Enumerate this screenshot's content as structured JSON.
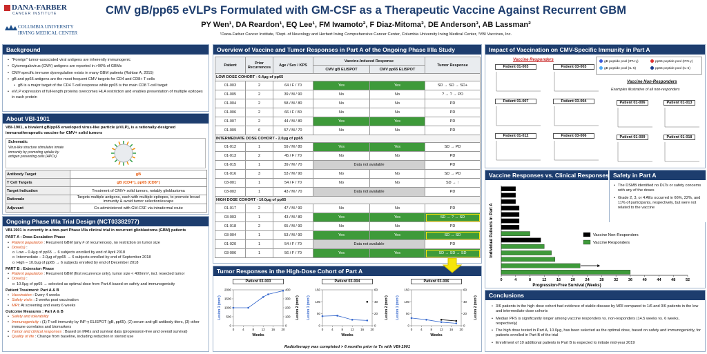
{
  "header": {
    "logo_1": "DANA-FARBER",
    "logo_1_sub": "CANCER INSTITUTE",
    "logo_2": "COLUMBIA UNIVERSITY",
    "logo_2_sub": "IRVING MEDICAL CENTER",
    "title": "CMV gB/pp65 eVLPs Formulated with GM-CSF as a Therapeutic Vaccine Against Recurrent GBM",
    "authors": "PY Wen¹, DA Reardon¹, EQ Lee¹, FM Iwamoto², F Diaz-Mitoma³, DE Anderson³, AB Lassman²",
    "affiliations": "¹Dana-Farber Cancer Institute, ²Dept. of Neurology and Herbert Irving Comprehensive Cancer Center, Columbia University Irving Medical Center, ³VBI Vaccines, Inc."
  },
  "background": {
    "heading": "Background",
    "bullets": [
      {
        "text": "\"Foreign\" tumor-associated viral antigens are inherently immunogenic",
        "level": 1
      },
      {
        "text": "Cytomegalovirus (CMV) antigens are reported in >90% of GBMs",
        "level": 1
      },
      {
        "text": "CMV-specific immune dysregulation exists in many GBM patients (Rahbar A, 2015)",
        "level": 1
      },
      {
        "text": "gB and pp65 antigens are the most frequent CMV targets for CD4 and CD8+ T-cells",
        "level": 1
      },
      {
        "text": "gB is a major target of the CD4 T-cell response while pp65 is the main CD8 T-cell target",
        "level": 2
      },
      {
        "text": "eVLP expression of full-length proteins overcomes HLA restriction and enables presentation of multiple epitopes in each protein",
        "level": 1
      }
    ]
  },
  "about": {
    "heading": "About VBI-1901",
    "intro": "VBI-1901, a bivalent gB/pp65 enveloped virus-like particle (eVLP), is a rationally-designed immunotherapeutic vaccine for CMV+ solid tumors",
    "schematic_label": "Schematic",
    "schematic_text": "Virus-like structure stimulates innate immunity by promoting uptake by antigen presenting cells (APCs)",
    "rows": [
      [
        "Antibody Target",
        "gB"
      ],
      [
        "T Cell Targets",
        "gB (CD4⁺), pp65 (CD8⁺)"
      ],
      [
        "Target Indication",
        "Treatment of CMV+ solid tumors, notably glioblastoma"
      ],
      [
        "Rationale",
        "Targets multiple antigens, each with multiple epitopes, to promote broad immunity & avoid tumor selection/escape"
      ],
      [
        "Adjuvant",
        "Co-administered with GM-CSF via intradermal route"
      ]
    ]
  },
  "trial": {
    "heading": "Ongoing Phase I/IIa Trial Design (NCT03382977)",
    "intro": "VBI-1901 is currently in a two-part Phase I/IIa clinical trial in recurrent glioblastoma (GBM) patients",
    "items": [
      {
        "kind": "head",
        "text": "PART A : Dose-Escalation Phase"
      },
      {
        "kind": "bullet",
        "label": "Patient population",
        "text": " : Recurrent GBM (any # of recurrences), no restriction on tumor size"
      },
      {
        "kind": "bullet",
        "label": "Dose(s)",
        "text": " :"
      },
      {
        "kind": "sub",
        "text": "Low – 0.4μg of pp65 → 6 subjects enrolled by end of April 2018"
      },
      {
        "kind": "sub",
        "text": "Intermediate – 2.0μg of pp65 → 6 subjects enrolled by end of September 2018"
      },
      {
        "kind": "sub",
        "text": "High – 10.0μg of pp65 → 6 subjects enrolled by end of December 2018"
      },
      {
        "kind": "head",
        "text": "PART B : Extension Phase"
      },
      {
        "kind": "bullet",
        "label": "Patient population",
        "text": " : Recurrent GBM (first recurrence only), tumor size < 400mm², incl. resected tumor"
      },
      {
        "kind": "bullet",
        "label": "Dose(s)",
        "text": " :"
      },
      {
        "kind": "sub",
        "text": "10.0μg of pp65 → selected as optimal dose from Part A based on safety and immunogenicity"
      },
      {
        "kind": "head",
        "text": "Patient Treatment: Part A & B"
      },
      {
        "kind": "bullet",
        "label": "Vaccination",
        "text": " : Every 4 weeks"
      },
      {
        "kind": "bullet",
        "label": "Safety visits",
        "text": " : 2 weeks post vaccination"
      },
      {
        "kind": "bullet",
        "label": "MRI",
        "text": ": At screening and every 6 weeks"
      },
      {
        "kind": "head",
        "text": "Outcome Measures : Part A & B"
      },
      {
        "kind": "bullet",
        "label": "Safety and tolerability",
        "text": ""
      },
      {
        "kind": "bullet",
        "label": "Immunogenicity",
        "text": " : (1) T-cell immunity by INF-γ ELISPOT (gB, pp65), (2) serum anti-gB antibody titers, (3) other immune correlates and biomarkers"
      },
      {
        "kind": "bullet",
        "label": "Tumor and clinical responses",
        "text": " : Based on MRIs and survival data (progression-free and overall survival)"
      },
      {
        "kind": "bullet",
        "label": "Quality of life",
        "text": " : Change from baseline, including reduction in steroid use"
      }
    ]
  },
  "table": {
    "heading": "Overview of Vaccine and Tumor Responses in Part A of the Ongoing Phase I/IIa Study",
    "columns": [
      "Patient",
      "Prior Recurrences",
      "Age / Sex / KPS",
      "Vaccine-Induced Response",
      "Tumor Response"
    ],
    "subcolumns": [
      "CMV gB ELISPOT",
      "CMV pp65 ELISPOT"
    ],
    "cohorts": [
      {
        "title": "LOW DOSE COHORT - 0.4μg of pp65",
        "highlight_rows": [],
        "rows": [
          [
            "01-003",
            "2",
            "64 / F / 70",
            "Yes",
            "Yes",
            "SD → SD → SD+"
          ],
          [
            "01-005",
            "2",
            "39 / M / 90",
            "No",
            "No",
            "? → ? → PD"
          ],
          [
            "01-004",
            "2",
            "58 / M / 80",
            "No",
            "No",
            "PD"
          ],
          [
            "01-006",
            "2",
            "66 / F / 80",
            "No",
            "No",
            "PD"
          ],
          [
            "01-007",
            "2",
            "44 / M / 80",
            "Yes",
            "Yes",
            "PD"
          ],
          [
            "01-009",
            "6",
            "57 / M / 70",
            "No",
            "No",
            "PD"
          ]
        ]
      },
      {
        "title": "INTERMEDIATE DOSE COHORT - 2.0μg of pp65",
        "highlight_rows": [],
        "rows": [
          [
            "01-012",
            "1",
            "59 / M / 80",
            "Yes",
            "Yes",
            "SD → PD"
          ],
          [
            "01-013",
            "2",
            "45 / F / 70",
            "No",
            "No",
            "PD"
          ],
          [
            "01-015",
            "1",
            "39 / M / 70",
            "Data not available",
            "PD"
          ],
          [
            "01-016",
            "3",
            "53 / M / 90",
            "No",
            "No",
            "SD → PD"
          ],
          [
            "03-001",
            "1",
            "54 / F / 70",
            "No",
            "No",
            "SD → ↑"
          ],
          [
            "03-002",
            "1",
            "43 / M / 70",
            "Data not available",
            "PD"
          ]
        ]
      },
      {
        "title": "HIGH DOSE COHORT - 10.0μg of pp65",
        "highlight_rows": [
          1,
          3,
          5
        ],
        "rows": [
          [
            "01-017",
            "2",
            "47 / M / 90",
            "No",
            "No",
            "PD"
          ],
          [
            "03-003",
            "1",
            "43 / M / 80",
            "Yes",
            "Yes",
            "SD → ? → SD"
          ],
          [
            "01-018",
            "2",
            "65 / M / 90",
            "No",
            "No",
            "PD"
          ],
          [
            "03-004",
            "1",
            "53 / M / 90",
            "Yes",
            "Yes",
            "SD → SD"
          ],
          [
            "01-020",
            "1",
            "54 / F / 70",
            "Data not available",
            "PD"
          ],
          [
            "03-006",
            "1",
            "56 / F / 70",
            "Yes",
            "Yes",
            "SD → SD → SD"
          ]
        ]
      }
    ]
  },
  "tumor": {
    "heading": "Tumor Responses in the High-Dose Cohort of Part A",
    "footnote": "Radiotherapy was completed > 6 months prior to Tx with VBI-1901",
    "charts": [
      {
        "type": "line",
        "title": "Patient 03-003",
        "xlabel": "Weeks",
        "ylabel": "Lesion 1 (mm²)",
        "y2label": "Lesion 2 (mm²)",
        "xlim": [
          0,
          20
        ],
        "xticks": [
          0,
          4,
          8,
          12,
          16,
          20
        ],
        "ylim": [
          0,
          2000
        ],
        "yticks": [
          0,
          500,
          1000,
          1500,
          2000
        ],
        "y2lim": [
          0,
          400
        ],
        "y2ticks": [
          0,
          100,
          200,
          300,
          400
        ],
        "series": [
          {
            "color": "#3366cc",
            "x": [
              0,
              6,
              12,
              14,
              20
            ],
            "values": [
              1000,
              1000,
              1600,
              1750,
              1950
            ]
          }
        ]
      },
      {
        "type": "line",
        "title": "Patient 03-004",
        "xlabel": "Weeks",
        "ylabel": "Lesion 1 (mm²)",
        "y2label": "Lesion 2 (mm²)",
        "xlim": [
          0,
          20
        ],
        "xticks": [
          0,
          4,
          8,
          12,
          16,
          20
        ],
        "ylim": [
          0,
          150
        ],
        "yticks": [
          0,
          50,
          100,
          150
        ],
        "y2lim": [
          0,
          60
        ],
        "y2ticks": [
          0,
          20,
          40,
          60
        ],
        "series": [
          {
            "color": "#3366cc",
            "x": [
              0,
              6,
              12,
              18
            ],
            "values": [
              40,
              42,
              25,
              22
            ]
          },
          {
            "color": "#111111",
            "axis": "y2",
            "x": [
              18
            ],
            "values": [
              40
            ]
          }
        ]
      },
      {
        "type": "line",
        "title": "Patient 03-006",
        "xlabel": "Weeks",
        "ylabel": "Lesion 1 (mm²)",
        "y2label": "Lesion 2 (mm²)",
        "xlim": [
          0,
          20
        ],
        "xticks": [
          0,
          4,
          8,
          12,
          16,
          20
        ],
        "ylim": [
          0,
          150
        ],
        "yticks": [
          0,
          50,
          100,
          150
        ],
        "y2lim": [
          0,
          60
        ],
        "y2ticks": [
          0,
          20,
          40,
          60
        ],
        "series": [
          {
            "color": "#3366cc",
            "x": [
              0,
              6,
              12,
              18
            ],
            "values": [
              32,
              25,
              15,
              10
            ]
          },
          {
            "color": "#111111",
            "axis": "y2",
            "x": [
              12,
              18
            ],
            "values": [
              10,
              8
            ]
          }
        ]
      }
    ]
  },
  "impact": {
    "heading": "Impact of Vaccination on CMV-Specific Immunity in Part A",
    "responders_label": "Vaccine Responders",
    "responders": [
      "Patient 01-003",
      "Patient 03-003",
      "Patient 01-007",
      "Patient 03-004",
      "Patient 01-012",
      "Patient 03-006"
    ],
    "non_responders_label": "Vaccine Non-Responders",
    "non_responders_note": "Examples illustrative of all non-responders",
    "non_responders": [
      "Patient 01-006",
      "Patient 01-013",
      "Patient 01-009",
      "Patient 01-018"
    ],
    "legend": [
      {
        "name": "gB peptide pool (IFN-γ)",
        "color": "#3b5bdb"
      },
      {
        "name": "pp65 peptide pool (IFN-γ)",
        "color": "#e03131"
      },
      {
        "name": "gB peptide pool (IL-5)",
        "color": "#4dabf7"
      },
      {
        "name": "pp65 peptide pool (IL-5)",
        "color": "#1c3d8f"
      }
    ]
  },
  "pfs": {
    "heading": "Vaccine Responses vs. Clinical Responses",
    "chart_data": {
      "type": "bar",
      "orientation": "horizontal",
      "xlabel": "Progression-Free Survival (Weeks)",
      "ylabel": "Individual Patients in Part A",
      "xlim": [
        0,
        52
      ],
      "xticks": [
        0,
        4,
        8,
        12,
        16,
        20,
        24,
        28,
        32,
        36,
        40,
        44,
        48,
        52
      ],
      "legend": "center-right",
      "series": [
        {
          "name": "Vaccine Non-Responders",
          "color": "#000000",
          "values": [
            4,
            4,
            4,
            5,
            5,
            5,
            5,
            null,
            11,
            null,
            null,
            null,
            null,
            null
          ]
        },
        {
          "name": "Vaccine Responders",
          "color": "#3e9a3a",
          "values": [
            null,
            null,
            null,
            null,
            null,
            null,
            null,
            8,
            null,
            12,
            14,
            15,
            22,
            36
          ]
        }
      ]
    }
  },
  "safety": {
    "heading": "Safety in Part A",
    "bullets": [
      "The DSMB identified no DLTs or safety concerns with any of the doses",
      "Grade 2, 3, or 4 AEs occurred in 66%, 22%, and 11% of participants, respectively, but were not related to the vaccine"
    ]
  },
  "conclusions": {
    "heading": "Conclusions",
    "bullets": [
      "3/6 patients in the high dose cohort had evidence of stable disease by MRI compared to 1/6 and 0/6 patients in the low and intermediate dose cohorts",
      "Median PFS is significantly longer among vaccine responders vs. non-responders (14.5 weeks vs. 6 weeks, respectively)",
      "The high dose tested in Part A, 10.0μg, has been selected as the optimal dose, based on safety and immunogenicity, for patients enrolled in Part B of the trial",
      "Enrollment of 10 additional patients in Part B is expected to initiate mid-year 2019"
    ]
  }
}
